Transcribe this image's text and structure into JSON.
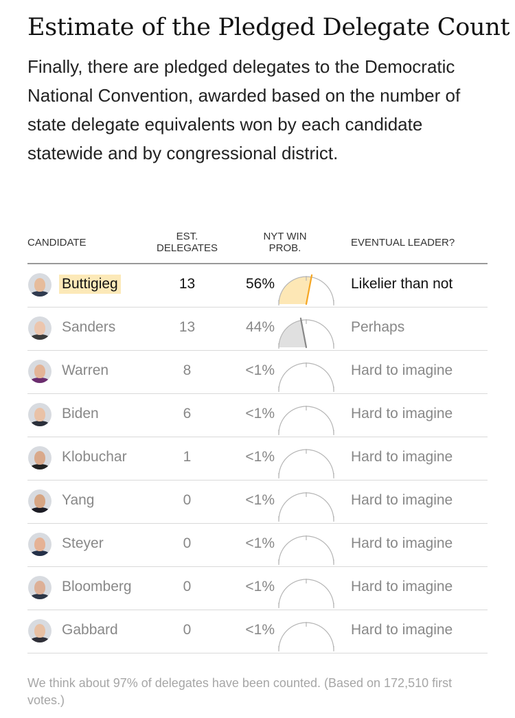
{
  "title": "Estimate of the Pledged Delegate Count",
  "intro": "Finally, there are pledged delegates to the Democratic National Convention, awarded based on the number of state delegate equivalents won by each candidate statewide and by congressional district.",
  "headers": {
    "candidate": "CANDIDATE",
    "delegates_line1": "EST.",
    "delegates_line2": "DELEGATES",
    "prob_line1": "NYT WIN",
    "prob_line2": "PROB.",
    "leader": "EVENTUAL LEADER?"
  },
  "colors": {
    "leader_highlight": "#fce9b8",
    "leader_gauge_fill": "#fde7b5",
    "leader_needle": "#f5a623",
    "second_gauge_fill": "#e0e0e0",
    "second_needle": "#888888"
  },
  "chart_data": {
    "type": "table",
    "columns": [
      "CANDIDATE",
      "EST. DELEGATES",
      "NYT WIN PROB.",
      "EVENTUAL LEADER?"
    ],
    "rows": [
      {
        "candidate": "Buttigieg",
        "delegates": "13",
        "prob_label": "56%",
        "prob_value": 0.56,
        "leader": "Likelier than not",
        "photo": "buttigieg-photo"
      },
      {
        "candidate": "Sanders",
        "delegates": "13",
        "prob_label": "44%",
        "prob_value": 0.44,
        "leader": "Perhaps",
        "photo": "sanders-photo"
      },
      {
        "candidate": "Warren",
        "delegates": "8",
        "prob_label": "<1%",
        "prob_value": 0.0,
        "leader": "Hard to imagine",
        "photo": "warren-photo"
      },
      {
        "candidate": "Biden",
        "delegates": "6",
        "prob_label": "<1%",
        "prob_value": 0.0,
        "leader": "Hard to imagine",
        "photo": "biden-photo"
      },
      {
        "candidate": "Klobuchar",
        "delegates": "1",
        "prob_label": "<1%",
        "prob_value": 0.0,
        "leader": "Hard to imagine",
        "photo": "klobuchar-photo"
      },
      {
        "candidate": "Yang",
        "delegates": "0",
        "prob_label": "<1%",
        "prob_value": 0.0,
        "leader": "Hard to imagine",
        "photo": "yang-photo"
      },
      {
        "candidate": "Steyer",
        "delegates": "0",
        "prob_label": "<1%",
        "prob_value": 0.0,
        "leader": "Hard to imagine",
        "photo": "steyer-photo"
      },
      {
        "candidate": "Bloomberg",
        "delegates": "0",
        "prob_label": "<1%",
        "prob_value": 0.0,
        "leader": "Hard to imagine",
        "photo": "bloomberg-photo"
      },
      {
        "candidate": "Gabbard",
        "delegates": "0",
        "prob_label": "<1%",
        "prob_value": 0.0,
        "leader": "Hard to imagine",
        "photo": "gabbard-photo"
      }
    ]
  },
  "footer": "We think about 97% of delegates have been counted. (Based on 172,510 first votes.)"
}
